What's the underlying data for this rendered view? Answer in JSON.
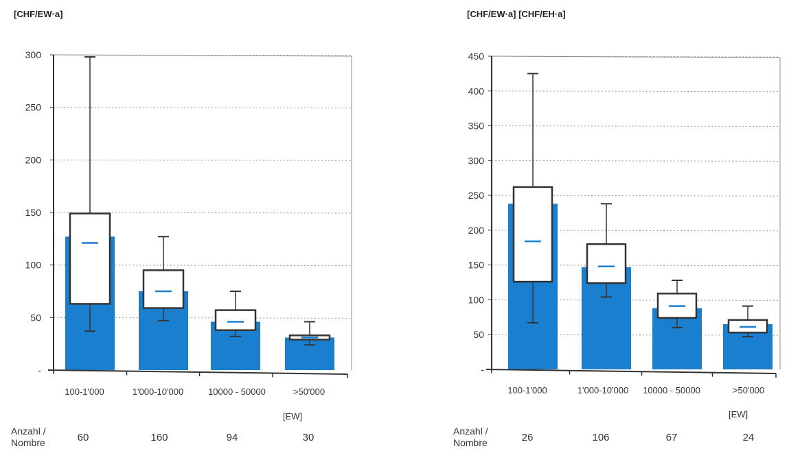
{
  "chart_data": [
    {
      "type": "bar",
      "ylabel": "[CHF/EW·a]",
      "xunit": "[EW]",
      "ylim": [
        0,
        300
      ],
      "yticks": [
        "-",
        "50",
        "100",
        "150",
        "200",
        "250",
        "300"
      ],
      "categories": [
        "100-1'000",
        "1'000-10'000",
        "10000 - 50000",
        ">50'000"
      ],
      "bars": [
        127,
        75,
        46,
        31
      ],
      "boxplots": [
        {
          "whisker_low": 37,
          "q1": 63,
          "median": 121,
          "q3": 149,
          "whisker_high": 298
        },
        {
          "whisker_low": 47,
          "q1": 59,
          "median": 75,
          "q3": 95,
          "whisker_high": 127
        },
        {
          "whisker_low": 32,
          "q1": 38,
          "median": 46,
          "q3": 57,
          "whisker_high": 75
        },
        {
          "whisker_low": 24,
          "q1": 29,
          "median": 31,
          "q3": 33,
          "whisker_high": 46
        }
      ],
      "count_label": [
        "Anzahl /",
        "Nombre"
      ],
      "counts": [
        "60",
        "160",
        "94",
        "30"
      ],
      "grid": "dotted-horizontal",
      "colors": {
        "bar": "#1b7fcf",
        "median": "#1b7fcf",
        "box": "#ffffff",
        "stroke": "#333333",
        "grid": "#999999"
      }
    },
    {
      "type": "bar",
      "ylabel": "[CHF/EW·a]  [CHF/EH·a]",
      "xunit": "[EW]",
      "ylim": [
        0,
        450
      ],
      "yticks": [
        "-",
        "50",
        "100",
        "150",
        "200",
        "250",
        "300",
        "350",
        "400",
        "450"
      ],
      "categories": [
        "100-1'000",
        "1'000-10'000",
        "10000 - 50000",
        ">50'000"
      ],
      "bars": [
        238,
        147,
        88,
        65
      ],
      "boxplots": [
        {
          "whisker_low": 67,
          "q1": 126,
          "median": 184,
          "q3": 262,
          "whisker_high": 425
        },
        {
          "whisker_low": 104,
          "q1": 124,
          "median": 148,
          "q3": 180,
          "whisker_high": 238
        },
        {
          "whisker_low": 60,
          "q1": 74,
          "median": 91,
          "q3": 109,
          "whisker_high": 128
        },
        {
          "whisker_low": 47,
          "q1": 53,
          "median": 61,
          "q3": 71,
          "whisker_high": 91
        }
      ],
      "count_label": [
        "Anzahl /",
        "Nombre"
      ],
      "counts": [
        "26",
        "106",
        "67",
        "24"
      ],
      "grid": "dotted-horizontal",
      "colors": {
        "bar": "#1b7fcf",
        "median": "#1b7fcf",
        "box": "#ffffff",
        "stroke": "#333333",
        "grid": "#999999"
      }
    }
  ]
}
